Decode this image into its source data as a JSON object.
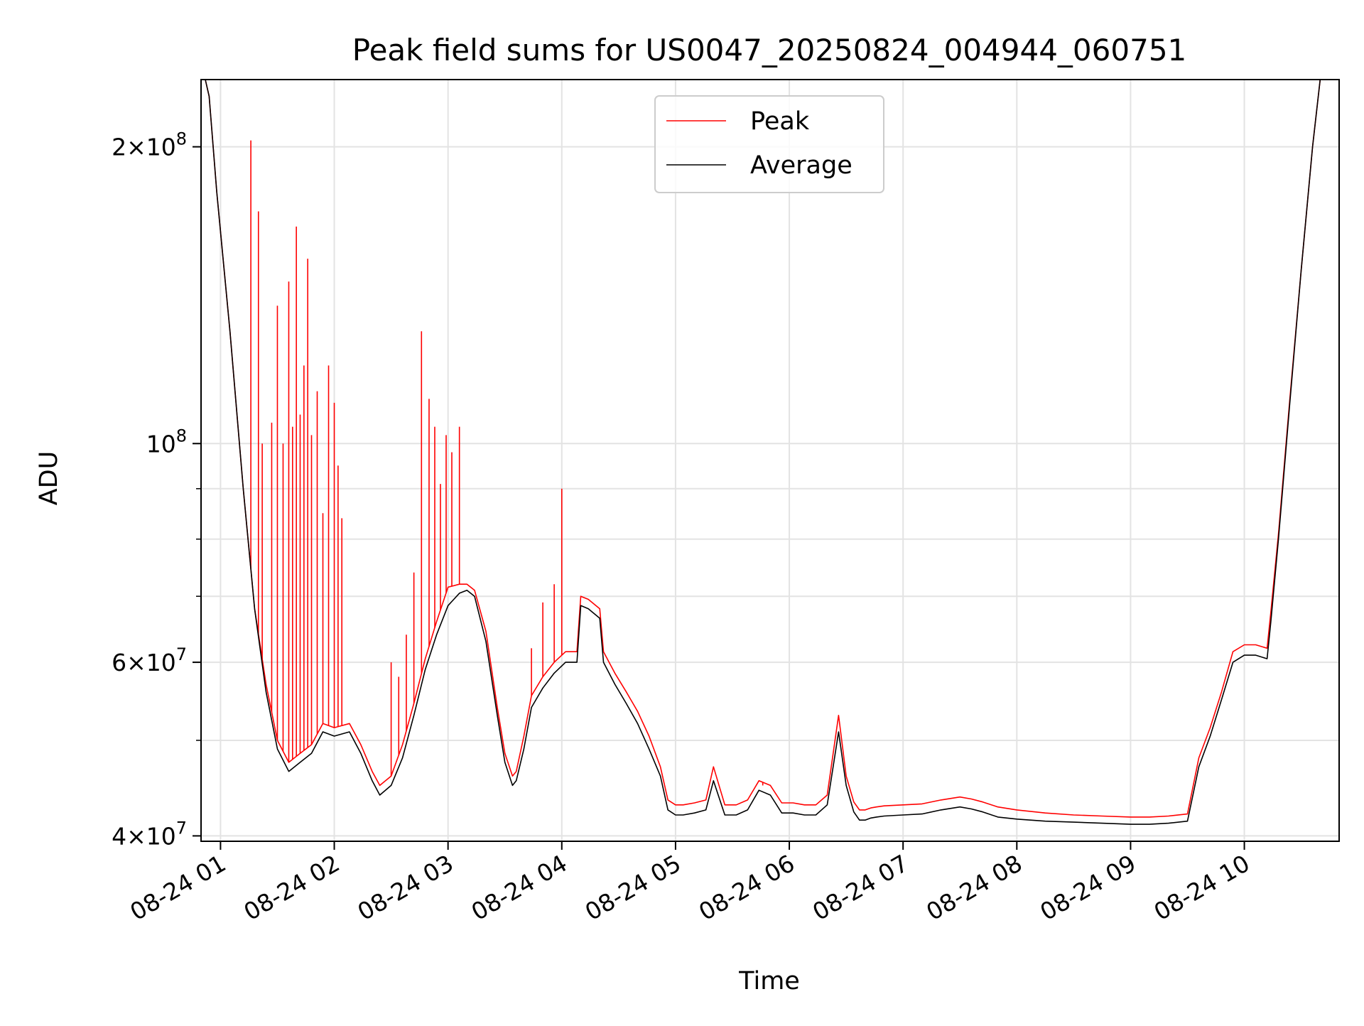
{
  "chart_data": {
    "type": "line",
    "title": "Peak field sums for US0047_20250824_004944_060751",
    "xlabel": "Time",
    "ylabel": "ADU",
    "x_scale": "time",
    "y_scale": "log",
    "xlim": [
      "2025-08-24 00:49:44",
      "2025-08-24 10:50:00"
    ],
    "ylim": [
      39500000,
      234000000
    ],
    "x_ticks": [
      "08-24 01",
      "08-24 02",
      "08-24 03",
      "08-24 04",
      "08-24 05",
      "08-24 06",
      "08-24 07",
      "08-24 08",
      "08-24 09",
      "08-24 10"
    ],
    "x_tick_times": [
      "2025-08-24 01:00",
      "2025-08-24 02:00",
      "2025-08-24 03:00",
      "2025-08-24 04:00",
      "2025-08-24 05:00",
      "2025-08-24 06:00",
      "2025-08-24 07:00",
      "2025-08-24 08:00",
      "2025-08-24 09:00",
      "2025-08-24 10:00"
    ],
    "y_ticks": [
      {
        "value": 200000000,
        "mantissa": "2",
        "exponent": "8"
      },
      {
        "value": 100000000,
        "mantissa": "",
        "exponent": "8"
      },
      {
        "value": 60000000,
        "mantissa": "6",
        "exponent": "7"
      },
      {
        "value": 40000000,
        "mantissa": "4",
        "exponent": "7"
      }
    ],
    "y_minor_gridlines": [
      50000000,
      70000000,
      80000000,
      90000000
    ],
    "grid": true,
    "legend_position": "top-center",
    "series": [
      {
        "name": "Average",
        "color": "#000000",
        "x": [
          "2025-08-24 00:49:44",
          "2025-08-24 00:52:00",
          "2025-08-24 00:54:00",
          "2025-08-24 00:58:00",
          "2025-08-24 01:05:00",
          "2025-08-24 01:12:00",
          "2025-08-24 01:18:00",
          "2025-08-24 01:24:00",
          "2025-08-24 01:30:00",
          "2025-08-24 01:36:00",
          "2025-08-24 01:42:00",
          "2025-08-24 01:48:00",
          "2025-08-24 01:54:00",
          "2025-08-24 02:00:00",
          "2025-08-24 02:08:00",
          "2025-08-24 02:14:00",
          "2025-08-24 02:20:00",
          "2025-08-24 02:24:00",
          "2025-08-24 02:30:00",
          "2025-08-24 02:36:00",
          "2025-08-24 02:42:00",
          "2025-08-24 02:48:00",
          "2025-08-24 02:54:00",
          "2025-08-24 03:00:00",
          "2025-08-24 03:06:00",
          "2025-08-24 03:10:00",
          "2025-08-24 03:14:00",
          "2025-08-24 03:20:00",
          "2025-08-24 03:26:00",
          "2025-08-24 03:30:00",
          "2025-08-24 03:34:00",
          "2025-08-24 03:36:00",
          "2025-08-24 03:40:00",
          "2025-08-24 03:44:00",
          "2025-08-24 03:50:00",
          "2025-08-24 03:56:00",
          "2025-08-24 04:02:00",
          "2025-08-24 04:08:00",
          "2025-08-24 04:10:00",
          "2025-08-24 04:14:00",
          "2025-08-24 04:20:00",
          "2025-08-24 04:22:00",
          "2025-08-24 04:28:00",
          "2025-08-24 04:34:00",
          "2025-08-24 04:40:00",
          "2025-08-24 04:46:00",
          "2025-08-24 04:52:00",
          "2025-08-24 04:56:00",
          "2025-08-24 05:00:00",
          "2025-08-24 05:04:00",
          "2025-08-24 05:10:00",
          "2025-08-24 05:16:00",
          "2025-08-24 05:20:00",
          "2025-08-24 05:26:00",
          "2025-08-24 05:32:00",
          "2025-08-24 05:38:00",
          "2025-08-24 05:44:00",
          "2025-08-24 05:50:00",
          "2025-08-24 05:56:00",
          "2025-08-24 06:02:00",
          "2025-08-24 06:08:00",
          "2025-08-24 06:14:00",
          "2025-08-24 06:20:00",
          "2025-08-24 06:26:00",
          "2025-08-24 06:30:00",
          "2025-08-24 06:34:00",
          "2025-08-24 06:37:00",
          "2025-08-24 06:40:00",
          "2025-08-24 06:43:00",
          "2025-08-24 06:46:00",
          "2025-08-24 06:50:00",
          "2025-08-24 07:00:00",
          "2025-08-24 07:10:00",
          "2025-08-24 07:20:00",
          "2025-08-24 07:30:00",
          "2025-08-24 07:36:00",
          "2025-08-24 07:42:00",
          "2025-08-24 07:50:00",
          "2025-08-24 08:00:00",
          "2025-08-24 08:15:00",
          "2025-08-24 08:30:00",
          "2025-08-24 08:45:00",
          "2025-08-24 09:00:00",
          "2025-08-24 09:10:00",
          "2025-08-24 09:20:00",
          "2025-08-24 09:30:00",
          "2025-08-24 09:36:00",
          "2025-08-24 09:42:00",
          "2025-08-24 09:48:00",
          "2025-08-24 09:54:00",
          "2025-08-24 10:00:00",
          "2025-08-24 10:06:00",
          "2025-08-24 10:12:00",
          "2025-08-24 10:14:00",
          "2025-08-24 10:18:00",
          "2025-08-24 10:24:00",
          "2025-08-24 10:30:00",
          "2025-08-24 10:36:00",
          "2025-08-24 10:40:00",
          "2025-08-24 10:43:00",
          "2025-08-24 10:46:00",
          "2025-08-24 10:50:00"
        ],
        "values": [
          234000000,
          234000000,
          225000000,
          180000000,
          130000000,
          90000000,
          68000000,
          56000000,
          49000000,
          46500000,
          47500000,
          48500000,
          51000000,
          50500000,
          51000000,
          48500000,
          45500000,
          44000000,
          45000000,
          48000000,
          53000000,
          59000000,
          64000000,
          68500000,
          70500000,
          71000000,
          70000000,
          63000000,
          53000000,
          47500000,
          45000000,
          45500000,
          49000000,
          54000000,
          56500000,
          58500000,
          60000000,
          60000000,
          68500000,
          68000000,
          66500000,
          60000000,
          57000000,
          54500000,
          52000000,
          49000000,
          46000000,
          42500000,
          42000000,
          42000000,
          42200000,
          42500000,
          45500000,
          42000000,
          42000000,
          42500000,
          44500000,
          44000000,
          42200000,
          42200000,
          42000000,
          42000000,
          43000000,
          51000000,
          45000000,
          42300000,
          41500000,
          41500000,
          41700000,
          41800000,
          41900000,
          42000000,
          42100000,
          42500000,
          42800000,
          42600000,
          42300000,
          41800000,
          41600000,
          41400000,
          41300000,
          41200000,
          41100000,
          41100000,
          41200000,
          41400000,
          47000000,
          50500000,
          55000000,
          60000000,
          61000000,
          61000000,
          60500000,
          66000000,
          80000000,
          110000000,
          150000000,
          200000000,
          234000000,
          234000000,
          234000000,
          234000000
        ]
      },
      {
        "name": "Peak",
        "color": "#ff0000",
        "x": [
          "2025-08-24 00:49:44",
          "2025-08-24 00:52:00",
          "2025-08-24 00:54:00",
          "2025-08-24 00:58:00",
          "2025-08-24 01:05:00",
          "2025-08-24 01:12:00",
          "2025-08-24 01:18:00",
          "2025-08-24 01:24:00",
          "2025-08-24 01:30:00",
          "2025-08-24 01:36:00",
          "2025-08-24 01:42:00",
          "2025-08-24 01:48:00",
          "2025-08-24 01:54:00",
          "2025-08-24 02:00:00",
          "2025-08-24 02:08:00",
          "2025-08-24 02:14:00",
          "2025-08-24 02:20:00",
          "2025-08-24 02:24:00",
          "2025-08-24 02:30:00",
          "2025-08-24 02:36:00",
          "2025-08-24 02:42:00",
          "2025-08-24 02:48:00",
          "2025-08-24 02:54:00",
          "2025-08-24 03:00:00",
          "2025-08-24 03:06:00",
          "2025-08-24 03:10:00",
          "2025-08-24 03:14:00",
          "2025-08-24 03:20:00",
          "2025-08-24 03:26:00",
          "2025-08-24 03:30:00",
          "2025-08-24 03:34:00",
          "2025-08-24 03:36:00",
          "2025-08-24 03:40:00",
          "2025-08-24 03:44:00",
          "2025-08-24 03:50:00",
          "2025-08-24 03:56:00",
          "2025-08-24 04:02:00",
          "2025-08-24 04:08:00",
          "2025-08-24 04:10:00",
          "2025-08-24 04:14:00",
          "2025-08-24 04:20:00",
          "2025-08-24 04:22:00",
          "2025-08-24 04:28:00",
          "2025-08-24 04:34:00",
          "2025-08-24 04:40:00",
          "2025-08-24 04:46:00",
          "2025-08-24 04:52:00",
          "2025-08-24 04:56:00",
          "2025-08-24 05:00:00",
          "2025-08-24 05:04:00",
          "2025-08-24 05:10:00",
          "2025-08-24 05:16:00",
          "2025-08-24 05:20:00",
          "2025-08-24 05:26:00",
          "2025-08-24 05:32:00",
          "2025-08-24 05:38:00",
          "2025-08-24 05:44:00",
          "2025-08-24 05:50:00",
          "2025-08-24 05:56:00",
          "2025-08-24 06:02:00",
          "2025-08-24 06:08:00",
          "2025-08-24 06:14:00",
          "2025-08-24 06:20:00",
          "2025-08-24 06:26:00",
          "2025-08-24 06:30:00",
          "2025-08-24 06:34:00",
          "2025-08-24 06:37:00",
          "2025-08-24 06:40:00",
          "2025-08-24 06:43:00",
          "2025-08-24 06:46:00",
          "2025-08-24 06:50:00",
          "2025-08-24 07:00:00",
          "2025-08-24 07:10:00",
          "2025-08-24 07:20:00",
          "2025-08-24 07:30:00",
          "2025-08-24 07:36:00",
          "2025-08-24 07:42:00",
          "2025-08-24 07:50:00",
          "2025-08-24 08:00:00",
          "2025-08-24 08:15:00",
          "2025-08-24 08:30:00",
          "2025-08-24 08:45:00",
          "2025-08-24 09:00:00",
          "2025-08-24 09:10:00",
          "2025-08-24 09:20:00",
          "2025-08-24 09:30:00",
          "2025-08-24 09:36:00",
          "2025-08-24 09:42:00",
          "2025-08-24 09:48:00",
          "2025-08-24 09:54:00",
          "2025-08-24 10:00:00",
          "2025-08-24 10:06:00",
          "2025-08-24 10:12:00",
          "2025-08-24 10:14:00",
          "2025-08-24 10:18:00",
          "2025-08-24 10:24:00",
          "2025-08-24 10:30:00",
          "2025-08-24 10:36:00",
          "2025-08-24 10:40:00",
          "2025-08-24 10:43:00",
          "2025-08-24 10:46:00",
          "2025-08-24 10:50:00"
        ],
        "values": [
          234000000,
          234000000,
          225000000,
          180000000,
          130000000,
          90000000,
          68000000,
          57000000,
          50000000,
          47500000,
          48500000,
          49500000,
          52000000,
          51500000,
          52000000,
          49500000,
          46500000,
          45000000,
          46000000,
          49500000,
          54500000,
          60500000,
          66000000,
          71500000,
          72000000,
          72000000,
          71000000,
          64500000,
          54000000,
          48500000,
          46000000,
          46500000,
          50500000,
          55500000,
          58000000,
          60000000,
          61500000,
          61500000,
          70000000,
          69500000,
          68000000,
          61500000,
          58500000,
          56000000,
          53500000,
          50500000,
          47000000,
          43500000,
          43000000,
          43000000,
          43200000,
          43500000,
          47000000,
          43000000,
          43000000,
          43500000,
          45500000,
          45000000,
          43200000,
          43200000,
          43000000,
          43000000,
          44000000,
          53000000,
          46000000,
          43300000,
          42500000,
          42500000,
          42700000,
          42800000,
          42900000,
          43000000,
          43100000,
          43500000,
          43800000,
          43600000,
          43300000,
          42800000,
          42500000,
          42200000,
          42000000,
          41900000,
          41800000,
          41800000,
          41900000,
          42100000,
          48000000,
          51500000,
          56000000,
          61500000,
          62500000,
          62500000,
          62000000,
          67500000,
          81000000,
          111000000,
          150000000,
          200000000,
          234000000,
          234000000,
          234000000,
          234000000
        ],
        "spikes": [
          {
            "x": "2025-08-24 01:16:00",
            "value": 203000000
          },
          {
            "x": "2025-08-24 01:20:00",
            "value": 172000000
          },
          {
            "x": "2025-08-24 01:22:00",
            "value": 100000000
          },
          {
            "x": "2025-08-24 01:27:00",
            "value": 105000000
          },
          {
            "x": "2025-08-24 01:30:00",
            "value": 138000000
          },
          {
            "x": "2025-08-24 01:33:00",
            "value": 100000000
          },
          {
            "x": "2025-08-24 01:36:00",
            "value": 146000000
          },
          {
            "x": "2025-08-24 01:38:00",
            "value": 104000000
          },
          {
            "x": "2025-08-24 01:40:00",
            "value": 166000000
          },
          {
            "x": "2025-08-24 01:42:00",
            "value": 107000000
          },
          {
            "x": "2025-08-24 01:44:00",
            "value": 120000000
          },
          {
            "x": "2025-08-24 01:46:00",
            "value": 154000000
          },
          {
            "x": "2025-08-24 01:48:00",
            "value": 102000000
          },
          {
            "x": "2025-08-24 01:51:00",
            "value": 113000000
          },
          {
            "x": "2025-08-24 01:54:00",
            "value": 85000000
          },
          {
            "x": "2025-08-24 01:57:00",
            "value": 120000000
          },
          {
            "x": "2025-08-24 02:00:00",
            "value": 110000000
          },
          {
            "x": "2025-08-24 02:02:00",
            "value": 95000000
          },
          {
            "x": "2025-08-24 02:04:00",
            "value": 84000000
          },
          {
            "x": "2025-08-24 02:30:00",
            "value": 60000000
          },
          {
            "x": "2025-08-24 02:34:00",
            "value": 58000000
          },
          {
            "x": "2025-08-24 02:38:00",
            "value": 64000000
          },
          {
            "x": "2025-08-24 02:42:00",
            "value": 74000000
          },
          {
            "x": "2025-08-24 02:46:00",
            "value": 130000000
          },
          {
            "x": "2025-08-24 02:50:00",
            "value": 111000000
          },
          {
            "x": "2025-08-24 02:53:00",
            "value": 104000000
          },
          {
            "x": "2025-08-24 02:56:00",
            "value": 91000000
          },
          {
            "x": "2025-08-24 02:59:00",
            "value": 102000000
          },
          {
            "x": "2025-08-24 03:02:00",
            "value": 98000000
          },
          {
            "x": "2025-08-24 03:06:00",
            "value": 104000000
          },
          {
            "x": "2025-08-24 03:44:00",
            "value": 62000000
          },
          {
            "x": "2025-08-24 03:50:00",
            "value": 69000000
          },
          {
            "x": "2025-08-24 03:56:00",
            "value": 72000000
          },
          {
            "x": "2025-08-24 04:00:00",
            "value": 90000000
          },
          {
            "x": "2025-08-24 05:46:00",
            "value": 45000000
          }
        ]
      }
    ]
  }
}
